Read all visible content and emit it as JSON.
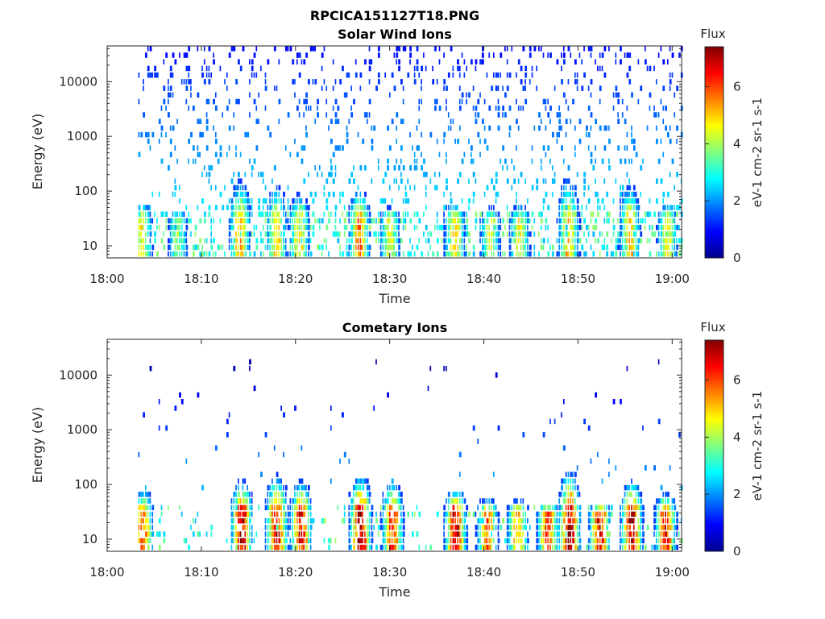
{
  "figure_title": "RPCICA151127T18.PNG",
  "chart_data": [
    {
      "type": "heatmap",
      "title": "Solar Wind Ions",
      "xlabel": "Time",
      "ylabel": "Energy (eV)",
      "x_ticks": [
        "18:00",
        "18:10",
        "18:20",
        "18:30",
        "18:40",
        "18:50",
        "19:00"
      ],
      "xlim_minutes": [
        0,
        61
      ],
      "y_scale": "log",
      "y_ticks": [
        10,
        100,
        1000,
        10000
      ],
      "ylim": [
        6,
        45000
      ],
      "colorbar": {
        "title": "Flux",
        "label": "eV-1 cm-2 sr-1 s-1",
        "min": 0,
        "max": 7.4,
        "ticks": [
          0,
          2,
          4,
          6
        ],
        "colormap": "jet"
      },
      "data_start_minute": 3.3,
      "data_end_minute": 61,
      "bursts": [
        {
          "minute": 3.6,
          "low_energy_flux": 4.5,
          "reach_eV": 80
        },
        {
          "minute": 7.4,
          "low_energy_flux": 3.8,
          "reach_eV": 40
        },
        {
          "minute": 14.0,
          "low_energy_flux": 5.2,
          "reach_eV": 250
        },
        {
          "minute": 17.9,
          "low_energy_flux": 4.8,
          "reach_eV": 200
        },
        {
          "minute": 20.3,
          "low_energy_flux": 4.8,
          "reach_eV": 120
        },
        {
          "minute": 26.7,
          "low_energy_flux": 5.6,
          "reach_eV": 150
        },
        {
          "minute": 29.9,
          "low_energy_flux": 4.4,
          "reach_eV": 60
        },
        {
          "minute": 36.8,
          "low_energy_flux": 4.9,
          "reach_eV": 80
        },
        {
          "minute": 40.6,
          "low_energy_flux": 4.3,
          "reach_eV": 60
        },
        {
          "minute": 43.7,
          "low_energy_flux": 4.5,
          "reach_eV": 70
        },
        {
          "minute": 48.9,
          "low_energy_flux": 5.1,
          "reach_eV": 300
        },
        {
          "minute": 55.4,
          "low_energy_flux": 5.0,
          "reach_eV": 200
        },
        {
          "minute": 59.4,
          "low_energy_flux": 4.4,
          "reach_eV": 80
        }
      ],
      "background_noise": {
        "density": 0.55,
        "flux_range": [
          1.0,
          2.6
        ],
        "energy_range_eV": [
          40,
          40000
        ]
      }
    },
    {
      "type": "heatmap",
      "title": "Cometary Ions",
      "xlabel": "Time",
      "ylabel": "Energy (eV)",
      "x_ticks": [
        "18:00",
        "18:10",
        "18:20",
        "18:30",
        "18:40",
        "18:50",
        "19:00"
      ],
      "xlim_minutes": [
        0,
        61
      ],
      "y_scale": "log",
      "y_ticks": [
        10,
        100,
        1000,
        10000
      ],
      "ylim": [
        6,
        45000
      ],
      "colorbar": {
        "title": "Flux",
        "label": "eV-1 cm-2 sr-1 s-1",
        "min": 0,
        "max": 7.4,
        "ticks": [
          0,
          2,
          4,
          6
        ],
        "colormap": "jet"
      },
      "data_start_minute": 3.3,
      "data_end_minute": 61,
      "bursts": [
        {
          "minute": 3.7,
          "low_energy_flux": 5.8,
          "reach_eV": 100
        },
        {
          "minute": 14.2,
          "low_energy_flux": 7.0,
          "reach_eV": 150
        },
        {
          "minute": 17.9,
          "low_energy_flux": 6.8,
          "reach_eV": 200
        },
        {
          "minute": 20.5,
          "low_energy_flux": 6.6,
          "reach_eV": 150
        },
        {
          "minute": 26.8,
          "low_energy_flux": 7.2,
          "reach_eV": 200
        },
        {
          "minute": 30.2,
          "low_energy_flux": 6.2,
          "reach_eV": 150
        },
        {
          "minute": 36.9,
          "low_energy_flux": 6.8,
          "reach_eV": 100
        },
        {
          "minute": 40.3,
          "low_energy_flux": 5.8,
          "reach_eV": 60
        },
        {
          "minute": 43.5,
          "low_energy_flux": 5.5,
          "reach_eV": 60
        },
        {
          "minute": 46.7,
          "low_energy_flux": 6.2,
          "reach_eV": 40
        },
        {
          "minute": 49.0,
          "low_energy_flux": 7.2,
          "reach_eV": 250
        },
        {
          "minute": 52.2,
          "low_energy_flux": 6.6,
          "reach_eV": 40
        },
        {
          "minute": 55.6,
          "low_energy_flux": 7.0,
          "reach_eV": 150
        },
        {
          "minute": 59.2,
          "low_energy_flux": 6.4,
          "reach_eV": 80
        }
      ],
      "background_noise": {
        "density": 0.06,
        "flux_range": [
          0.3,
          2.2
        ],
        "energy_range_eV": [
          80,
          20000
        ]
      }
    }
  ]
}
